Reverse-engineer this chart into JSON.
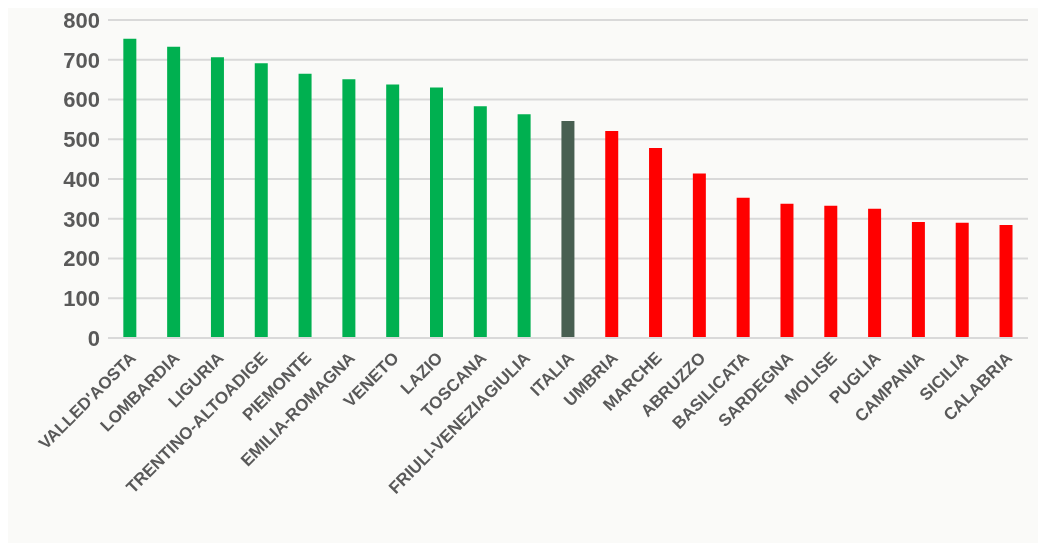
{
  "chart_data": {
    "type": "bar",
    "categories": [
      "VALLED'AOSTA",
      "LOMBARDIA",
      "LIGURIA",
      "TRENTINO-ALTOADIGE",
      "PIEMONTE",
      "EMILIA-ROMAGNA",
      "VENETO",
      "LAZIO",
      "TOSCANA",
      "FRIULI-VENEZIAGIULIA",
      "ITALIA",
      "UMBRIA",
      "MARCHE",
      "ABRUZZO",
      "BASILICATA",
      "SARDEGNA",
      "MOLISE",
      "PUGLIA",
      "CAMPANIA",
      "SICILIA",
      "CALABRIA"
    ],
    "values": [
      753,
      733,
      706,
      691,
      665,
      651,
      638,
      630,
      583,
      563,
      546,
      521,
      478,
      414,
      353,
      338,
      333,
      325,
      292,
      290,
      284
    ],
    "colors": [
      "#00b050",
      "#00b050",
      "#00b050",
      "#00b050",
      "#00b050",
      "#00b050",
      "#00b050",
      "#00b050",
      "#00b050",
      "#00b050",
      "#485f51",
      "#ff0000",
      "#ff0000",
      "#ff0000",
      "#ff0000",
      "#ff0000",
      "#ff0000",
      "#ff0000",
      "#ff0000",
      "#ff0000",
      "#ff0000"
    ],
    "ylim": [
      0,
      800
    ],
    "yticks": [
      0,
      100,
      200,
      300,
      400,
      500,
      600,
      700,
      800
    ],
    "grid": "y",
    "legend": false
  }
}
